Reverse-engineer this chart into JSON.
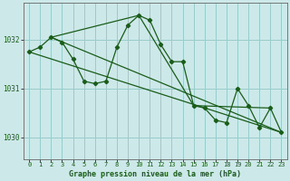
{
  "title": "Graphe pression niveau de la mer (hPa)",
  "bg_color": "#cce8e8",
  "grid_color": "#99cccc",
  "line_color": "#1a5c1a",
  "xlim": [
    -0.5,
    23.5
  ],
  "ylim": [
    1029.55,
    1032.75
  ],
  "yticks": [
    1030,
    1031,
    1032
  ],
  "xticks": [
    0,
    1,
    2,
    3,
    4,
    5,
    6,
    7,
    8,
    9,
    10,
    11,
    12,
    13,
    14,
    15,
    16,
    17,
    18,
    19,
    20,
    21,
    22,
    23
  ],
  "detail_x": [
    0,
    1,
    2,
    3,
    4,
    5,
    6,
    7,
    8,
    9,
    10,
    11,
    12,
    13,
    14,
    15,
    16,
    17,
    18,
    19,
    20,
    21,
    22,
    23
  ],
  "detail_y": [
    1031.75,
    1031.85,
    1032.05,
    1031.95,
    1031.6,
    1031.15,
    1031.1,
    1031.15,
    1031.85,
    1032.3,
    1032.5,
    1032.4,
    1031.9,
    1031.55,
    1031.55,
    1030.65,
    1030.6,
    1030.35,
    1030.3,
    1031.0,
    1030.65,
    1030.2,
    1030.6,
    1030.1
  ],
  "trend1_x": [
    0,
    23
  ],
  "trend1_y": [
    1031.75,
    1030.1
  ],
  "trend2_x": [
    2,
    23
  ],
  "trend2_y": [
    1032.05,
    1030.1
  ],
  "trend3_x": [
    2,
    10,
    15,
    22
  ],
  "trend3_y": [
    1032.05,
    1032.5,
    1030.65,
    1030.6
  ]
}
